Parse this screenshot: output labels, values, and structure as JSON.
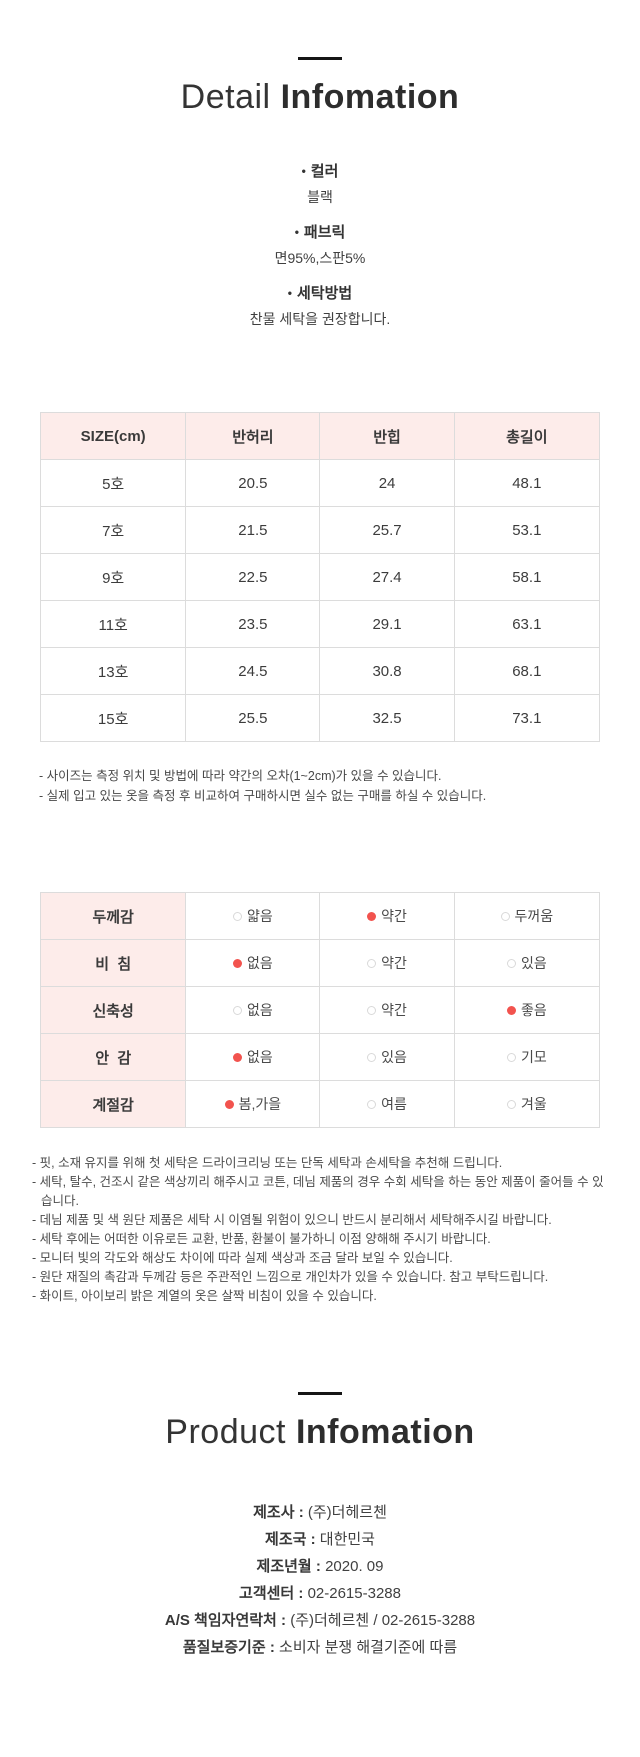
{
  "colors": {
    "accent_pink": "#fdecea",
    "dot_red": "#f2534e",
    "table_border": "#dcdcdc"
  },
  "detail_section": {
    "title_light": "Detail",
    "title_bold": "Infomation",
    "bullet": "•",
    "info_items": [
      {
        "label": "컬러",
        "value": "블랙"
      },
      {
        "label": "패브릭",
        "value": "면95%,스판5%"
      },
      {
        "label": "세탁방법",
        "value": "찬물 세탁을 권장합니다."
      }
    ]
  },
  "size_table": {
    "headers": [
      "SIZE(cm)",
      "반허리",
      "반힙",
      "총길이"
    ],
    "rows": [
      [
        "5호",
        "20.5",
        "24",
        "48.1"
      ],
      [
        "7호",
        "21.5",
        "25.7",
        "53.1"
      ],
      [
        "9호",
        "22.5",
        "27.4",
        "58.1"
      ],
      [
        "11호",
        "23.5",
        "29.1",
        "63.1"
      ],
      [
        "13호",
        "24.5",
        "30.8",
        "68.1"
      ],
      [
        "15호",
        "25.5",
        "32.5",
        "73.1"
      ]
    ],
    "notes": [
      "- 사이즈는 측정 위치 및 방법에 따라 약간의 오차(1~2cm)가 있을 수 있습니다.",
      "- 실제 입고 있는 옷을 측정 후 비교하여 구매하시면 실수 없는 구매를 하실 수 있습니다."
    ]
  },
  "attribute_table": {
    "rows": [
      {
        "label": "두께감",
        "options": [
          {
            "text": "얇음",
            "selected": false
          },
          {
            "text": "약간",
            "selected": true
          },
          {
            "text": "두꺼움",
            "selected": false
          }
        ]
      },
      {
        "label": "비  침",
        "options": [
          {
            "text": "없음",
            "selected": true
          },
          {
            "text": "약간",
            "selected": false
          },
          {
            "text": "있음",
            "selected": false
          }
        ]
      },
      {
        "label": "신축성",
        "options": [
          {
            "text": "없음",
            "selected": false
          },
          {
            "text": "약간",
            "selected": false
          },
          {
            "text": "좋음",
            "selected": true
          }
        ]
      },
      {
        "label": "안  감",
        "options": [
          {
            "text": "없음",
            "selected": true
          },
          {
            "text": "있음",
            "selected": false
          },
          {
            "text": "기모",
            "selected": false
          }
        ]
      },
      {
        "label": "계절감",
        "options": [
          {
            "text": "봄,가을",
            "selected": true
          },
          {
            "text": "여름",
            "selected": false
          },
          {
            "text": "겨울",
            "selected": false
          }
        ]
      }
    ]
  },
  "care_notes": [
    "- 핏, 소재 유지를 위해 첫 세탁은 드라이크리닝 또는 단독 세탁과 손세탁을 추천해 드립니다.",
    "- 세탁, 탈수, 건조시 같은 색상끼리 해주시고 코튼, 데님 제품의 경우 수회 세탁을 하는 동안 제품이 줄어들 수 있습니다.",
    "- 데님 제품 및 색 원단 제품은 세탁 시 이염될 위험이 있으니 반드시 분리해서 세탁해주시길 바랍니다.",
    "- 세탁 후에는 어떠한 이유로든 교환, 반품, 환불이 불가하니 이점 양해해 주시기 바랍니다.",
    "- 모니터 빛의 각도와 해상도 차이에 따라 실제 색상과 조금 달라 보일 수 있습니다.",
    "- 원단 재질의 촉감과 두께감 등은 주관적인 느낌으로 개인차가 있을 수 있습니다. 참고 부탁드립니다.",
    "- 화이트, 아이보리 밝은 계열의 옷은 살짝 비침이 있을 수 있습니다."
  ],
  "product_section": {
    "title_light": "Product",
    "title_bold": "Infomation",
    "separator": " : ",
    "fields": [
      {
        "label": "제조사",
        "value": "(주)더헤르첸"
      },
      {
        "label": "제조국",
        "value": "대한민국"
      },
      {
        "label": "제조년월",
        "value": "2020. 09"
      },
      {
        "label": "고객센터",
        "value": "02-2615-3288"
      },
      {
        "label": "A/S 책임자연락처",
        "value": "(주)더헤르첸 / 02-2615-3288"
      },
      {
        "label": "품질보증기준",
        "value": "소비자 분쟁 해결기준에 따름"
      }
    ]
  }
}
